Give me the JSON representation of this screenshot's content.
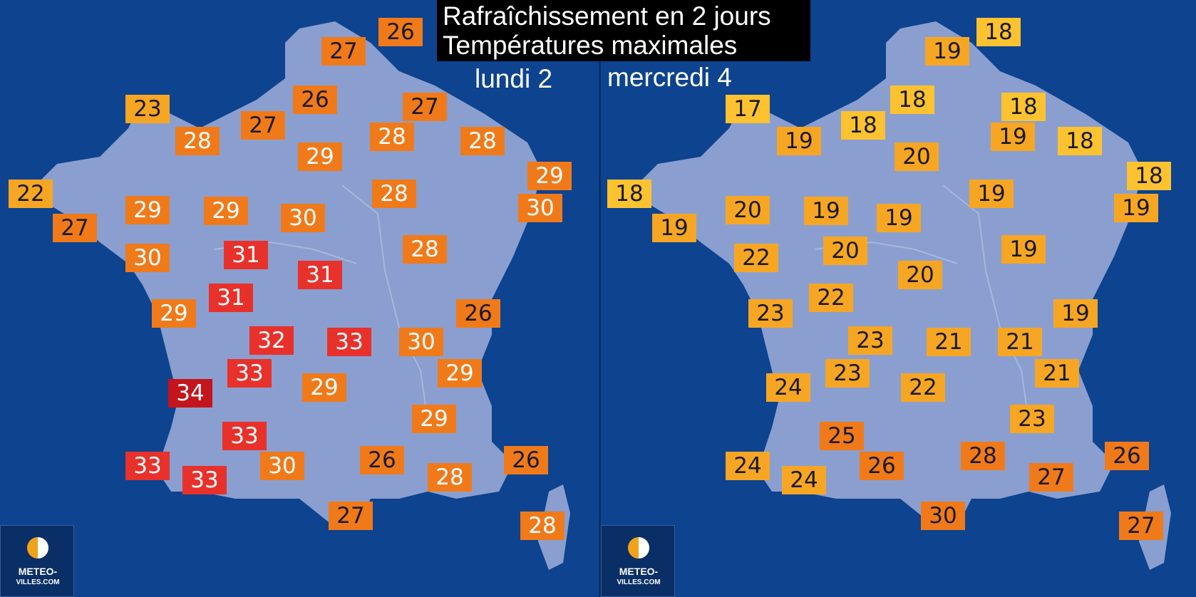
{
  "title": {
    "line1": "Rafraîchissement en 2 jours",
    "line2": "Températures maximales"
  },
  "panels": [
    {
      "day": "lundi 2",
      "logo_line1": "METEO-",
      "logo_line2": "VILLES.COM",
      "temps": [
        {
          "v": "27",
          "c": "#f07a1a",
          "t": "dark"
        },
        {
          "v": "26",
          "c": "#f07a1a",
          "t": "dark"
        },
        {
          "v": "23",
          "c": "#f7a623",
          "t": "dark"
        },
        {
          "v": "27",
          "c": "#f07a1a",
          "t": "dark"
        },
        {
          "v": "26",
          "c": "#f07a1a",
          "t": "dark"
        },
        {
          "v": "27",
          "c": "#f07a1a",
          "t": "dark"
        },
        {
          "v": "28",
          "c": "#f07a1a",
          "t": "light"
        },
        {
          "v": "29",
          "c": "#f07a1a",
          "t": "light"
        },
        {
          "v": "28",
          "c": "#f07a1a",
          "t": "light"
        },
        {
          "v": "28",
          "c": "#f07a1a",
          "t": "light"
        },
        {
          "v": "22",
          "c": "#f7a623",
          "t": "dark"
        },
        {
          "v": "29",
          "c": "#f07a1a",
          "t": "light"
        },
        {
          "v": "27",
          "c": "#f07a1a",
          "t": "dark"
        },
        {
          "v": "29",
          "c": "#f07a1a",
          "t": "light"
        },
        {
          "v": "30",
          "c": "#f07a1a",
          "t": "light"
        },
        {
          "v": "28",
          "c": "#f07a1a",
          "t": "light"
        },
        {
          "v": "29",
          "c": "#f07a1a",
          "t": "light"
        },
        {
          "v": "30",
          "c": "#f07a1a",
          "t": "light"
        },
        {
          "v": "30",
          "c": "#f07a1a",
          "t": "light"
        },
        {
          "v": "31",
          "c": "#e8312b",
          "t": "light"
        },
        {
          "v": "28",
          "c": "#f07a1a",
          "t": "light"
        },
        {
          "v": "31",
          "c": "#e8312b",
          "t": "light"
        },
        {
          "v": "31",
          "c": "#e8312b",
          "t": "light"
        },
        {
          "v": "29",
          "c": "#f07a1a",
          "t": "light"
        },
        {
          "v": "26",
          "c": "#f07a1a",
          "t": "dark"
        },
        {
          "v": "32",
          "c": "#e8312b",
          "t": "light"
        },
        {
          "v": "33",
          "c": "#e8312b",
          "t": "light"
        },
        {
          "v": "30",
          "c": "#f07a1a",
          "t": "light"
        },
        {
          "v": "33",
          "c": "#e8312b",
          "t": "light"
        },
        {
          "v": "29",
          "c": "#f07a1a",
          "t": "light"
        },
        {
          "v": "34",
          "c": "#c4141c",
          "t": "light"
        },
        {
          "v": "29",
          "c": "#f07a1a",
          "t": "light"
        },
        {
          "v": "29",
          "c": "#f07a1a",
          "t": "light"
        },
        {
          "v": "33",
          "c": "#e8312b",
          "t": "light"
        },
        {
          "v": "26",
          "c": "#f07a1a",
          "t": "dark"
        },
        {
          "v": "26",
          "c": "#f07a1a",
          "t": "dark"
        },
        {
          "v": "33",
          "c": "#e8312b",
          "t": "light"
        },
        {
          "v": "30",
          "c": "#f07a1a",
          "t": "light"
        },
        {
          "v": "33",
          "c": "#e8312b",
          "t": "light"
        },
        {
          "v": "28",
          "c": "#f07a1a",
          "t": "light"
        },
        {
          "v": "27",
          "c": "#f07a1a",
          "t": "dark"
        },
        {
          "v": "28",
          "c": "#f07a1a",
          "t": "light"
        }
      ]
    },
    {
      "day": "mercredi 4",
      "logo_line1": "METEO-",
      "logo_line2": "VILLES.COM",
      "temps": [
        {
          "v": "19",
          "c": "#f7a623",
          "t": "dark"
        },
        {
          "v": "18",
          "c": "#fdc22f",
          "t": "dark"
        },
        {
          "v": "17",
          "c": "#fdc22f",
          "t": "dark"
        },
        {
          "v": "18",
          "c": "#fdc22f",
          "t": "dark"
        },
        {
          "v": "18",
          "c": "#fdc22f",
          "t": "dark"
        },
        {
          "v": "18",
          "c": "#fdc22f",
          "t": "dark"
        },
        {
          "v": "19",
          "c": "#f7a623",
          "t": "dark"
        },
        {
          "v": "19",
          "c": "#f7a623",
          "t": "dark"
        },
        {
          "v": "18",
          "c": "#fdc22f",
          "t": "dark"
        },
        {
          "v": "20",
          "c": "#f7a623",
          "t": "dark"
        },
        {
          "v": "18",
          "c": "#fdc22f",
          "t": "dark"
        },
        {
          "v": "18",
          "c": "#fdc22f",
          "t": "dark"
        },
        {
          "v": "20",
          "c": "#f7a623",
          "t": "dark"
        },
        {
          "v": "19",
          "c": "#f7a623",
          "t": "dark"
        },
        {
          "v": "19",
          "c": "#f7a623",
          "t": "dark"
        },
        {
          "v": "19",
          "c": "#f7a623",
          "t": "dark"
        },
        {
          "v": "19",
          "c": "#f7a623",
          "t": "dark"
        },
        {
          "v": "19",
          "c": "#f7a623",
          "t": "dark"
        },
        {
          "v": "22",
          "c": "#f7a623",
          "t": "dark"
        },
        {
          "v": "20",
          "c": "#f7a623",
          "t": "dark"
        },
        {
          "v": "19",
          "c": "#f7a623",
          "t": "dark"
        },
        {
          "v": "20",
          "c": "#f7a623",
          "t": "dark"
        },
        {
          "v": "22",
          "c": "#f7a623",
          "t": "dark"
        },
        {
          "v": "23",
          "c": "#f7a623",
          "t": "dark"
        },
        {
          "v": "19",
          "c": "#f7a623",
          "t": "dark"
        },
        {
          "v": "23",
          "c": "#f7a623",
          "t": "dark"
        },
        {
          "v": "21",
          "c": "#f7a623",
          "t": "dark"
        },
        {
          "v": "21",
          "c": "#f7a623",
          "t": "dark"
        },
        {
          "v": "23",
          "c": "#f7a623",
          "t": "dark"
        },
        {
          "v": "24",
          "c": "#f7a623",
          "t": "dark"
        },
        {
          "v": "21",
          "c": "#f7a623",
          "t": "dark"
        },
        {
          "v": "22",
          "c": "#f7a623",
          "t": "dark"
        },
        {
          "v": "23",
          "c": "#f7a623",
          "t": "dark"
        },
        {
          "v": "25",
          "c": "#f07a1a",
          "t": "dark"
        },
        {
          "v": "24",
          "c": "#f7a623",
          "t": "dark"
        },
        {
          "v": "26",
          "c": "#f07a1a",
          "t": "dark"
        },
        {
          "v": "28",
          "c": "#f07a1a",
          "t": "dark"
        },
        {
          "v": "27",
          "c": "#f07a1a",
          "t": "dark"
        },
        {
          "v": "26",
          "c": "#f07a1a",
          "t": "dark"
        },
        {
          "v": "24",
          "c": "#f7a623",
          "t": "dark"
        },
        {
          "v": "30",
          "c": "#f07a1a",
          "t": "dark"
        },
        {
          "v": "27",
          "c": "#f07a1a",
          "t": "dark"
        }
      ]
    }
  ]
}
